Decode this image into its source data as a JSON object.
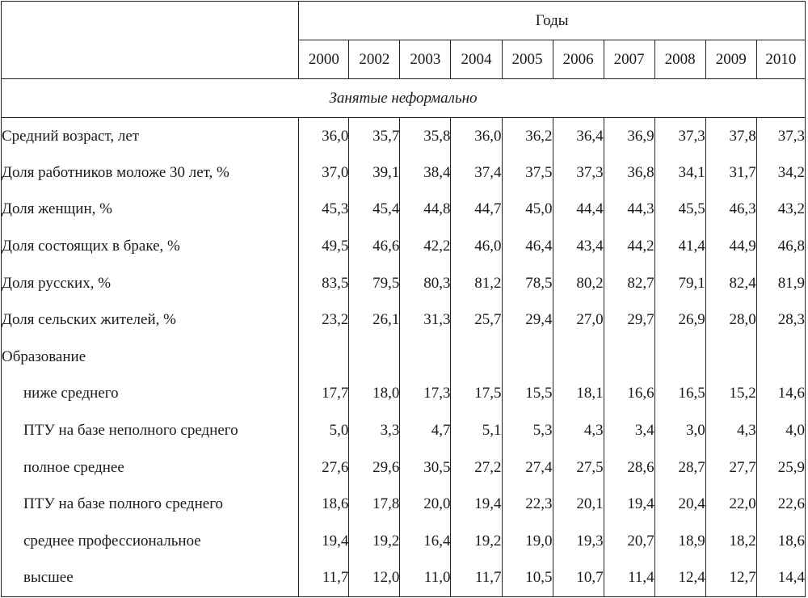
{
  "header": {
    "years_title": "Годы",
    "years": [
      "2000",
      "2002",
      "2003",
      "2004",
      "2005",
      "2006",
      "2007",
      "2008",
      "2009",
      "2010"
    ]
  },
  "section_title": "Занятые неформально",
  "rows": [
    {
      "label": "Средний возраст, лет",
      "sub": false,
      "values": [
        "36,0",
        "35,7",
        "35,8",
        "36,0",
        "36,2",
        "36,4",
        "36,9",
        "37,3",
        "37,8",
        "37,3"
      ]
    },
    {
      "label": "Доля работников моложе 30 лет, %",
      "sub": false,
      "values": [
        "37,0",
        "39,1",
        "38,4",
        "37,4",
        "37,5",
        "37,3",
        "36,8",
        "34,1",
        "31,7",
        "34,2"
      ]
    },
    {
      "label": "Доля женщин, %",
      "sub": false,
      "values": [
        "45,3",
        "45,4",
        "44,8",
        "44,7",
        "45,0",
        "44,4",
        "44,3",
        "45,5",
        "46,3",
        "43,2"
      ]
    },
    {
      "label": "Доля состоящих в браке, %",
      "sub": false,
      "values": [
        "49,5",
        "46,6",
        "42,2",
        "46,0",
        "46,4",
        "43,4",
        "44,2",
        "41,4",
        "44,9",
        "46,8"
      ]
    },
    {
      "label": "Доля русских, %",
      "sub": false,
      "values": [
        "83,5",
        "79,5",
        "80,3",
        "81,2",
        "78,5",
        "80,2",
        "82,7",
        "79,1",
        "82,4",
        "81,9"
      ]
    },
    {
      "label": "Доля сельских жителей, %",
      "sub": false,
      "values": [
        "23,2",
        "26,1",
        "31,3",
        "25,7",
        "29,4",
        "27,0",
        "29,7",
        "26,9",
        "28,0",
        "28,3"
      ]
    },
    {
      "label": "Образование",
      "sub": false,
      "values": [
        "",
        "",
        "",
        "",
        "",
        "",
        "",
        "",
        "",
        ""
      ]
    },
    {
      "label": "ниже среднего",
      "sub": true,
      "values": [
        "17,7",
        "18,0",
        "17,3",
        "17,5",
        "15,5",
        "18,1",
        "16,6",
        "16,5",
        "15,2",
        "14,6"
      ]
    },
    {
      "label": "ПТУ на базе неполного среднего",
      "sub": true,
      "values": [
        "5,0",
        "3,3",
        "4,7",
        "5,1",
        "5,3",
        "4,3",
        "3,4",
        "3,0",
        "4,3",
        "4,0"
      ]
    },
    {
      "label": "полное среднее",
      "sub": true,
      "values": [
        "27,6",
        "29,6",
        "30,5",
        "27,2",
        "27,4",
        "27,5",
        "28,6",
        "28,7",
        "27,7",
        "25,9"
      ]
    },
    {
      "label": "ПТУ на базе полного среднего",
      "sub": true,
      "values": [
        "18,6",
        "17,8",
        "20,0",
        "19,4",
        "22,3",
        "20,1",
        "19,4",
        "20,4",
        "22,0",
        "22,6"
      ]
    },
    {
      "label": "среднее профессиональное",
      "sub": true,
      "values": [
        "19,4",
        "19,2",
        "16,4",
        "19,2",
        "19,0",
        "19,3",
        "20,7",
        "18,9",
        "18,2",
        "18,6"
      ]
    },
    {
      "label": "высшее",
      "sub": true,
      "values": [
        "11,7",
        "12,0",
        "11,0",
        "11,7",
        "10,5",
        "10,7",
        "11,4",
        "12,4",
        "12,7",
        "14,4"
      ]
    }
  ]
}
